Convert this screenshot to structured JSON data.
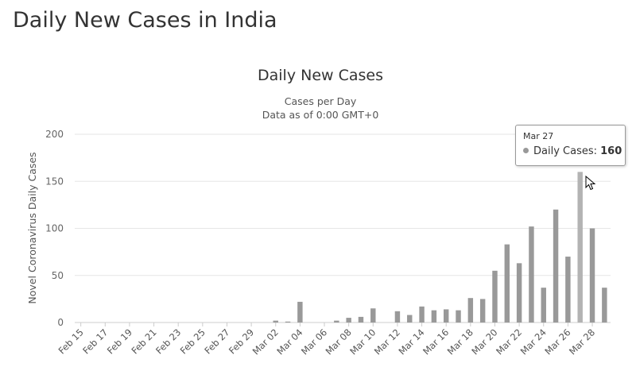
{
  "page_title": "Daily New Cases in India",
  "chart_data": {
    "type": "bar",
    "title": "Daily New Cases",
    "subtitle_lines": [
      "Cases per Day",
      "Data as of 0:00 GMT+0"
    ],
    "xlabel": "",
    "ylabel": "Novel Coronavirus Daily Cases",
    "ylim": [
      0,
      200
    ],
    "yticks": [
      0,
      50,
      100,
      150,
      200
    ],
    "grid": true,
    "bar_color": "#999999",
    "categories": [
      "Feb 15",
      "Feb 16",
      "Feb 17",
      "Feb 18",
      "Feb 19",
      "Feb 20",
      "Feb 21",
      "Feb 22",
      "Feb 23",
      "Feb 24",
      "Feb 25",
      "Feb 26",
      "Feb 27",
      "Feb 28",
      "Feb 29",
      "Mar 01",
      "Mar 02",
      "Mar 03",
      "Mar 04",
      "Mar 05",
      "Mar 06",
      "Mar 07",
      "Mar 08",
      "Mar 09",
      "Mar 10",
      "Mar 11",
      "Mar 12",
      "Mar 13",
      "Mar 14",
      "Mar 15",
      "Mar 16",
      "Mar 17",
      "Mar 18",
      "Mar 19",
      "Mar 20",
      "Mar 21",
      "Mar 22",
      "Mar 23",
      "Mar 24",
      "Mar 25",
      "Mar 26",
      "Mar 27",
      "Mar 28",
      "Mar 29"
    ],
    "tick_labels": [
      "Feb 15",
      "Feb 17",
      "Feb 19",
      "Feb 21",
      "Feb 23",
      "Feb 25",
      "Feb 27",
      "Feb 29",
      "Mar 02",
      "Mar 04",
      "Mar 06",
      "Mar 08",
      "Mar 10",
      "Mar 12",
      "Mar 14",
      "Mar 16",
      "Mar 18",
      "Mar 20",
      "Mar 22",
      "Mar 24",
      "Mar 26",
      "Mar 28"
    ],
    "series": [
      {
        "values": [
          0,
          0,
          0,
          0,
          0,
          0,
          0,
          0,
          0,
          0,
          0,
          0,
          0,
          0,
          0,
          0,
          2,
          1,
          22,
          0,
          0,
          2,
          5,
          6,
          15,
          0,
          12,
          8,
          17,
          13,
          14,
          13,
          26,
          25,
          55,
          83,
          63,
          102,
          37,
          120,
          70,
          160,
          100,
          37
        ]
      }
    ]
  },
  "tooltip": {
    "date": "Mar 27",
    "label": "Daily Cases:",
    "value": "160",
    "dot_color": "#999999",
    "highlight_color": "#b3b3b3"
  }
}
